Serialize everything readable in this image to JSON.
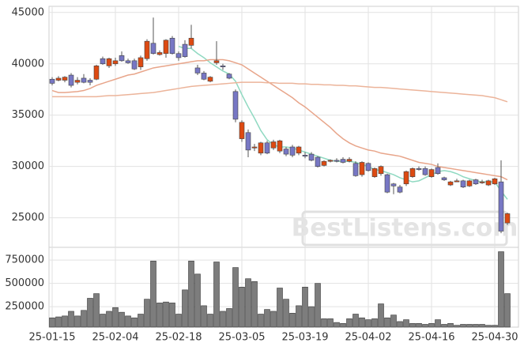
{
  "chart_data": {
    "type": "candlestick",
    "watermark": "BestListens.com",
    "categories": [
      "25-01-15",
      null,
      null,
      null,
      null,
      null,
      null,
      null,
      null,
      null,
      "25-02-04",
      null,
      null,
      null,
      null,
      null,
      null,
      null,
      null,
      null,
      "25-02-18",
      null,
      null,
      null,
      null,
      null,
      null,
      null,
      null,
      null,
      "25-03-05",
      null,
      null,
      null,
      null,
      null,
      null,
      null,
      null,
      null,
      "25-03-19",
      null,
      null,
      null,
      null,
      null,
      null,
      null,
      null,
      null,
      "25-04-02",
      null,
      null,
      null,
      null,
      null,
      null,
      null,
      null,
      null,
      "25-04-16",
      null,
      null,
      null,
      null,
      null,
      null,
      null,
      null,
      null,
      "25-04-30",
      null,
      null
    ],
    "open": [
      38500,
      38400,
      38400,
      38900,
      38200,
      38600,
      38400,
      38500,
      40500,
      39800,
      40000,
      40800,
      40300,
      40300,
      39700,
      40500,
      42000,
      40900,
      41000,
      42500,
      41000,
      41900,
      41800,
      39600,
      39100,
      38300,
      40100,
      39800,
      39000,
      37300,
      32700,
      33300,
      31800,
      31300,
      32300,
      31800,
      31500,
      31700,
      31900,
      31300,
      31100,
      31200,
      30900,
      30100,
      30500,
      30600,
      30700,
      30500,
      30300,
      29200,
      30300,
      29000,
      29300,
      29200,
      28300,
      28000,
      28300,
      29000,
      29800,
      29800,
      29000,
      29900,
      28900,
      28200,
      28500,
      28600,
      28100,
      28700,
      28400,
      28200,
      28300,
      28500,
      24500
    ],
    "high": [
      38700,
      38800,
      38800,
      39100,
      38700,
      39000,
      38600,
      39900,
      40700,
      40600,
      40600,
      41200,
      40500,
      40500,
      40800,
      42400,
      44500,
      41300,
      42400,
      42700,
      41200,
      42300,
      43800,
      39900,
      39300,
      38800,
      42200,
      40000,
      39100,
      37500,
      34500,
      33600,
      32200,
      32400,
      32500,
      32600,
      32600,
      31900,
      32100,
      32000,
      31400,
      31400,
      31000,
      30600,
      30700,
      30800,
      30900,
      30900,
      30500,
      30500,
      30400,
      29900,
      30100,
      29300,
      28400,
      28200,
      29600,
      29900,
      30000,
      30000,
      29800,
      30300,
      29000,
      28600,
      28800,
      28700,
      28700,
      28800,
      28700,
      28700,
      28900,
      30600,
      25500
    ],
    "low": [
      37900,
      38300,
      38200,
      37700,
      38000,
      38100,
      37900,
      38400,
      39900,
      39600,
      39800,
      40200,
      40000,
      39400,
      39400,
      40300,
      40900,
      40800,
      40600,
      40900,
      40300,
      40600,
      41500,
      38900,
      38400,
      38200,
      39900,
      39400,
      38500,
      34300,
      32400,
      30900,
      31500,
      31100,
      31200,
      31600,
      31300,
      31000,
      30900,
      31100,
      30800,
      30500,
      29900,
      30000,
      30400,
      30400,
      30300,
      30400,
      29000,
      29000,
      29500,
      28900,
      29100,
      27400,
      27300,
      27400,
      28100,
      28900,
      29600,
      29100,
      28900,
      29200,
      28600,
      28100,
      28500,
      27900,
      28000,
      28200,
      28300,
      28100,
      28200,
      23500,
      24300
    ],
    "close": [
      38100,
      38600,
      38700,
      37900,
      38400,
      38200,
      38200,
      39800,
      40000,
      40500,
      40300,
      40300,
      40100,
      39500,
      40600,
      42200,
      41000,
      41100,
      42300,
      41000,
      40600,
      40700,
      42500,
      39100,
      38500,
      38700,
      40300,
      39700,
      38600,
      34600,
      34300,
      31600,
      31900,
      32300,
      31300,
      32400,
      32500,
      31200,
      31100,
      31900,
      31000,
      30600,
      30000,
      30500,
      30600,
      30500,
      30400,
      30700,
      29100,
      30400,
      29600,
      29800,
      30000,
      27500,
      28100,
      27500,
      29500,
      29800,
      29700,
      29200,
      29700,
      29300,
      28700,
      28500,
      28600,
      28000,
      28600,
      28300,
      28500,
      28600,
      28800,
      23700,
      25400
    ],
    "up_color": "#dd4a12",
    "down_color": "#7777c4",
    "moving_averages": [
      {
        "color": "#8fd9c1",
        "values": [
          null,
          null,
          null,
          null,
          null,
          null,
          null,
          null,
          null,
          null,
          null,
          null,
          null,
          null,
          null,
          null,
          null,
          null,
          null,
          null,
          41700,
          41500,
          41500,
          41000,
          40600,
          40100,
          39700,
          39300,
          39000,
          38300,
          37000,
          35800,
          34700,
          33500,
          32600,
          32100,
          31900,
          31900,
          31800,
          31600,
          31400,
          31200,
          31000,
          30800,
          30600,
          30500,
          30500,
          30500,
          30400,
          30200,
          30000,
          29700,
          29600,
          29400,
          29200,
          28900,
          28700,
          28500,
          28600,
          28900,
          29200,
          29500,
          29600,
          29500,
          29300,
          29000,
          28800,
          28600,
          28500,
          28500,
          28500,
          27600,
          26800
        ]
      },
      {
        "color": "#e8a58a",
        "values": [
          37400,
          37200,
          37200,
          37250,
          37300,
          37400,
          37600,
          37900,
          38100,
          38300,
          38500,
          38700,
          38900,
          39000,
          39200,
          39400,
          39600,
          39700,
          39800,
          39900,
          40000,
          40100,
          40200,
          40300,
          40300,
          40400,
          40400,
          40400,
          40300,
          40100,
          39900,
          39500,
          39100,
          38700,
          38300,
          37900,
          37500,
          37100,
          36700,
          36200,
          35800,
          35300,
          34800,
          34300,
          33800,
          33200,
          32700,
          32300,
          32000,
          31800,
          31600,
          31500,
          31300,
          31200,
          31100,
          31000,
          30800,
          30600,
          30400,
          30300,
          30200,
          30000,
          29900,
          29800,
          29700,
          29600,
          29500,
          29400,
          29300,
          29200,
          29100,
          29000,
          28700
        ]
      },
      {
        "color": "#ecb49a",
        "values": [
          36800,
          36800,
          36800,
          36800,
          36800,
          36800,
          36800,
          36800,
          36850,
          36900,
          36900,
          36950,
          37000,
          37050,
          37100,
          37150,
          37200,
          37300,
          37400,
          37500,
          37600,
          37700,
          37800,
          37850,
          37900,
          37950,
          38000,
          38050,
          38100,
          38150,
          38200,
          38200,
          38200,
          38200,
          38150,
          38150,
          38100,
          38100,
          38100,
          38050,
          38050,
          38000,
          38000,
          37950,
          37950,
          37900,
          37900,
          37850,
          37850,
          37800,
          37750,
          37700,
          37700,
          37650,
          37600,
          37550,
          37500,
          37450,
          37400,
          37350,
          37300,
          37250,
          37200,
          37150,
          37100,
          37050,
          37000,
          36950,
          36900,
          36800,
          36700,
          36500,
          36300
        ]
      }
    ],
    "ylim": [
      22200,
      45600
    ],
    "yticks": [
      25000,
      30000,
      35000,
      40000,
      45000
    ],
    "volume": [
      130000,
      140000,
      150000,
      200000,
      150000,
      210000,
      340000,
      390000,
      170000,
      200000,
      240000,
      190000,
      150000,
      130000,
      170000,
      330000,
      740000,
      290000,
      300000,
      290000,
      170000,
      430000,
      740000,
      600000,
      260000,
      170000,
      730000,
      200000,
      230000,
      670000,
      460000,
      550000,
      520000,
      170000,
      220000,
      200000,
      450000,
      330000,
      180000,
      260000,
      460000,
      250000,
      500000,
      120000,
      120000,
      80000,
      70000,
      120000,
      170000,
      130000,
      110000,
      120000,
      280000,
      130000,
      160000,
      90000,
      110000,
      70000,
      70000,
      60000,
      70000,
      110000,
      60000,
      70000,
      50000,
      60000,
      60000,
      60000,
      60000,
      50000,
      50000,
      840000,
      390000
    ],
    "volume_color": "#7d7d7d",
    "volume_ylim": [
      30000,
      870000
    ],
    "volume_yticks": [
      250000,
      500000,
      750000
    ],
    "grid": true
  }
}
